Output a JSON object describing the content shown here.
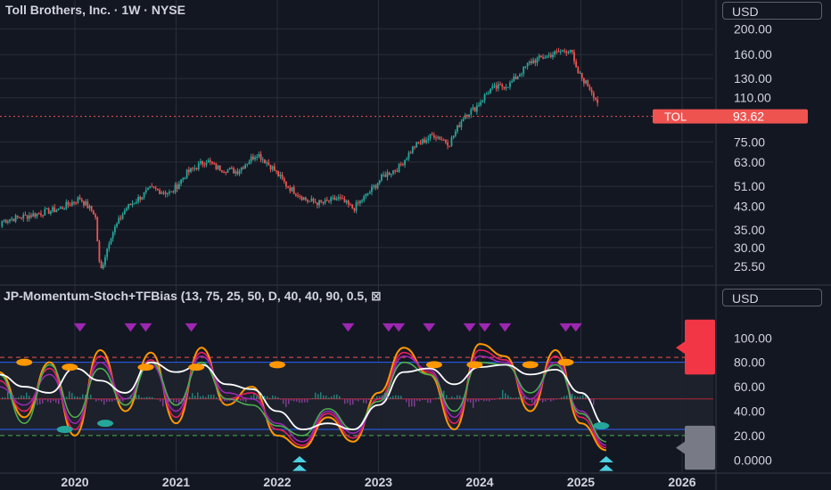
{
  "header": {
    "title": "Toll Brothers, Inc. · 1W · NYSE",
    "currency": "USD"
  },
  "indicator": {
    "title": "JP-Momentum-Stoch+TFBias (13, 75, 25, 50, D, 40, 40, 90, 0.5, ⊠",
    "currency": "USD"
  },
  "colors": {
    "background": "#131722",
    "up": "#26a69a",
    "down": "#ef5350",
    "grid": "#2a2e39",
    "stoch_orange": "#ff9800",
    "stoch_red": "#e91e63",
    "stoch_purple": "#9c27b0",
    "stoch_green": "#4caf50",
    "stoch_white": "#ffffff",
    "marker_purple": "#9c27b0",
    "marker_teal": "#4dd0e1"
  },
  "chart_data": [
    {
      "type": "candlestick",
      "title": "Toll Brothers, Inc. · 1W · NYSE",
      "y_scale": "log",
      "y_ticks": [
        "200.00",
        "160.00",
        "130.00",
        "110.00",
        "93.62",
        "75.00",
        "63.00",
        "51.00",
        "43.00",
        "35.00",
        "30.00",
        "25.50"
      ],
      "x_ticks": [
        "2020",
        "2021",
        "2022",
        "2023",
        "2024",
        "2025",
        "2026"
      ],
      "last_price": {
        "symbol": "TOL",
        "value": "93.62"
      },
      "x": [
        2019.0,
        2019.3,
        2019.6,
        2019.85,
        2020.05,
        2020.2,
        2020.25,
        2020.35,
        2020.5,
        2020.75,
        2020.95,
        2021.1,
        2021.3,
        2021.4,
        2021.6,
        2021.8,
        2021.95,
        2022.1,
        2022.3,
        2022.45,
        2022.6,
        2022.75,
        2022.9,
        2023.05,
        2023.2,
        2023.35,
        2023.55,
        2023.7,
        2023.85,
        2023.95,
        2024.1,
        2024.3,
        2024.5,
        2024.7,
        2024.9,
        2024.95,
        2025.1,
        2025.2,
        2025.25
      ],
      "close": [
        36,
        38,
        40,
        42,
        46,
        40,
        24,
        33,
        42,
        50,
        48,
        57,
        64,
        60,
        58,
        68,
        60,
        51,
        45,
        44,
        46,
        42,
        48,
        56,
        60,
        72,
        80,
        74,
        95,
        100,
        118,
        124,
        150,
        160,
        168,
        140,
        118,
        100,
        93.62
      ]
    },
    {
      "type": "line",
      "title": "JP-Momentum-Stoch+TFBias (13, 75, 25, 50, D, 40, 40, 90, 0.5, ⊠",
      "y_ticks": [
        "100.00",
        "80.00",
        "60.00",
        "40.00",
        "20.00",
        "0.0000"
      ],
      "ylim": [
        -10,
        125
      ],
      "x": [
        2019.0,
        2019.25,
        2019.5,
        2019.75,
        2020.0,
        2020.25,
        2020.5,
        2020.75,
        2021.0,
        2021.25,
        2021.5,
        2021.75,
        2022.0,
        2022.25,
        2022.5,
        2022.75,
        2023.0,
        2023.25,
        2023.5,
        2023.75,
        2024.0,
        2024.25,
        2024.5,
        2024.75,
        2025.0,
        2025.25
      ],
      "series": [
        {
          "values": [
            60,
            72,
            35,
            80,
            20,
            90,
            40,
            88,
            30,
            92,
            45,
            60,
            20,
            10,
            35,
            15,
            55,
            92,
            70,
            25,
            95,
            85,
            40,
            90,
            30,
            8
          ]
        },
        {
          "values": [
            55,
            65,
            40,
            75,
            25,
            85,
            45,
            82,
            35,
            88,
            50,
            55,
            25,
            12,
            38,
            18,
            50,
            88,
            72,
            30,
            90,
            82,
            45,
            85,
            35,
            10
          ]
        },
        {
          "values": [
            50,
            60,
            45,
            70,
            30,
            80,
            50,
            78,
            40,
            85,
            55,
            50,
            30,
            15,
            40,
            22,
            45,
            85,
            74,
            35,
            85,
            80,
            50,
            80,
            40,
            12
          ]
        },
        {
          "values": [
            65,
            70,
            30,
            78,
            35,
            75,
            45,
            80,
            45,
            80,
            50,
            45,
            28,
            20,
            42,
            25,
            48,
            80,
            70,
            40,
            80,
            78,
            55,
            78,
            38,
            15
          ]
        },
        {
          "values": [
            78,
            70,
            60,
            55,
            75,
            65,
            55,
            80,
            72,
            78,
            62,
            58,
            40,
            25,
            30,
            25,
            45,
            72,
            75,
            62,
            76,
            78,
            70,
            74,
            55,
            28
          ]
        }
      ]
    }
  ]
}
